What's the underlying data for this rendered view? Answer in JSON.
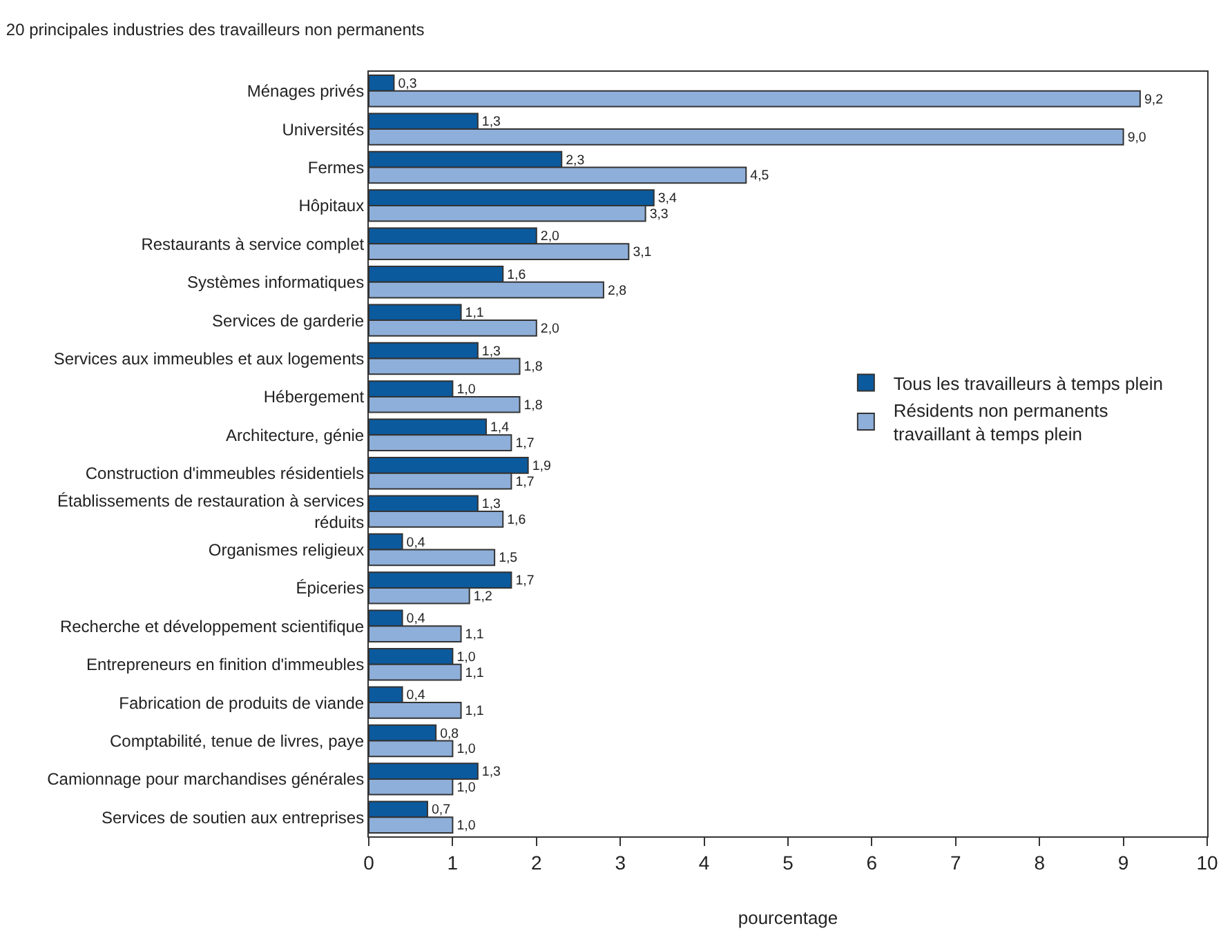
{
  "chart_data": {
    "type": "bar",
    "orientation": "horizontal",
    "title": "20 principales industries des travailleurs non permanents",
    "xlabel": "pourcentage",
    "categories": [
      "Ménages privés",
      "Universités",
      "Fermes",
      "Hôpitaux",
      "Restaurants à service complet",
      "Systèmes informatiques",
      "Services de garderie",
      "Services aux immeubles et aux logements",
      "Hébergement",
      "Architecture, génie",
      "Construction d'immeubles résidentiels",
      "Établissements de restauration à services réduits",
      "Organismes religieux",
      "Épiceries",
      "Recherche et développement scientifique",
      "Entrepreneurs en finition d'immeubles",
      "Fabrication de produits de viande",
      "Comptabilité, tenue de livres, paye",
      "Camionnage pour marchandises générales",
      "Services de soutien aux entreprises"
    ],
    "series": [
      {
        "name": "Tous les travailleurs à temps plein",
        "color": "#0b5a9e",
        "values": [
          0.3,
          1.3,
          2.3,
          3.4,
          2.0,
          1.6,
          1.1,
          1.3,
          1.0,
          1.4,
          1.9,
          1.3,
          0.4,
          1.7,
          0.4,
          1.0,
          0.4,
          0.8,
          1.3,
          0.7
        ],
        "value_labels": [
          "0,3",
          "1,3",
          "2,3",
          "3,4",
          "2,0",
          "1,6",
          "1,1",
          "1,3",
          "1,0",
          "1,4",
          "1,9",
          "1,3",
          "0,4",
          "1,7",
          "0,4",
          "1,0",
          "0,4",
          "0,8",
          "1,3",
          "0,7"
        ]
      },
      {
        "name": "Résidents non permanents travaillant à temps plein",
        "color": "#8eafd9",
        "values": [
          9.2,
          9.0,
          4.5,
          3.3,
          3.1,
          2.8,
          2.0,
          1.8,
          1.8,
          1.7,
          1.7,
          1.6,
          1.5,
          1.2,
          1.1,
          1.1,
          1.1,
          1.0,
          1.0,
          1.0
        ],
        "value_labels": [
          "9,2",
          "9,0",
          "4,5",
          "3,3",
          "3,1",
          "2,8",
          "2,0",
          "1,8",
          "1,8",
          "1,7",
          "1,7",
          "1,6",
          "1,5",
          "1,2",
          "1,1",
          "1,1",
          "1,1",
          "1,0",
          "1,0",
          "1,0"
        ]
      }
    ],
    "xlim": [
      0,
      10
    ],
    "xticks": [
      0,
      1,
      2,
      3,
      4,
      5,
      6,
      7,
      8,
      9,
      10
    ],
    "grid": false,
    "legend": "right"
  }
}
